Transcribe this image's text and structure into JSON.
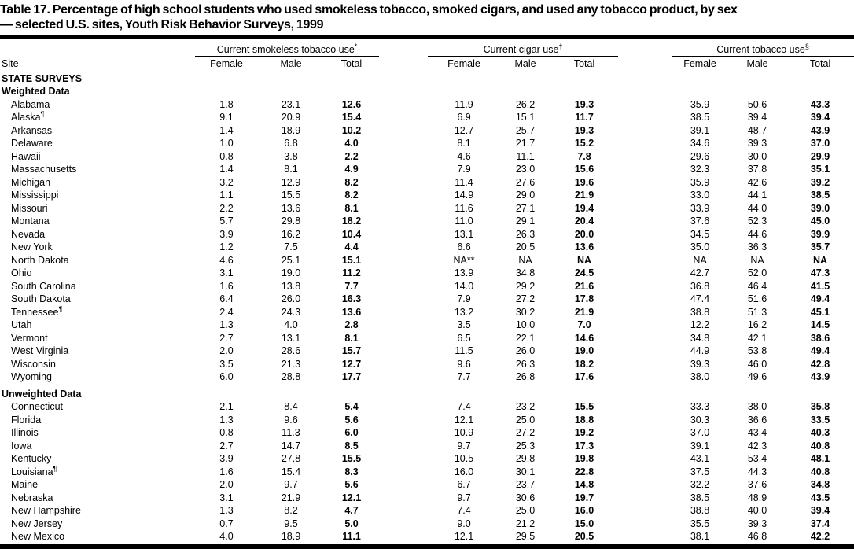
{
  "title": {
    "line1": "Table 17. Percentage of high school students who used smokeless tobacco, smoked cigars, and used any tobacco product, by sex",
    "line2": "— selected U.S. sites, Youth Risk Behavior Surveys, 1999"
  },
  "columns": {
    "site": "Site",
    "groups": [
      {
        "label": "Current smokeless tobacco use",
        "marker": "*",
        "sub": [
          "Female",
          "Male",
          "Total"
        ]
      },
      {
        "label": "Current cigar use",
        "marker": "†",
        "sub": [
          "Female",
          "Male",
          "Total"
        ]
      },
      {
        "label": "Current tobacco use",
        "marker": "§",
        "sub": [
          "Female",
          "Male",
          "Total"
        ]
      }
    ]
  },
  "rows": [
    {
      "type": "section",
      "label": "STATE SURVEYS"
    },
    {
      "type": "section",
      "label": "Weighted Data"
    },
    {
      "type": "data",
      "site": "Alabama",
      "values": [
        "1.8",
        "23.1",
        "12.6",
        "11.9",
        "26.2",
        "19.3",
        "35.9",
        "50.6",
        "43.3"
      ]
    },
    {
      "type": "data",
      "site": "Alaska",
      "sup": "¶",
      "values": [
        "9.1",
        "20.9",
        "15.4",
        "6.9",
        "15.1",
        "11.7",
        "38.5",
        "39.4",
        "39.4"
      ]
    },
    {
      "type": "data",
      "site": "Arkansas",
      "values": [
        "1.4",
        "18.9",
        "10.2",
        "12.7",
        "25.7",
        "19.3",
        "39.1",
        "48.7",
        "43.9"
      ]
    },
    {
      "type": "data",
      "site": "Delaware",
      "values": [
        "1.0",
        "6.8",
        "4.0",
        "8.1",
        "21.7",
        "15.2",
        "34.6",
        "39.3",
        "37.0"
      ]
    },
    {
      "type": "data",
      "site": "Hawaii",
      "values": [
        "0.8",
        "3.8",
        "2.2",
        "4.6",
        "11.1",
        "7.8",
        "29.6",
        "30.0",
        "29.9"
      ]
    },
    {
      "type": "data",
      "site": "Massachusetts",
      "values": [
        "1.4",
        "8.1",
        "4.9",
        "7.9",
        "23.0",
        "15.6",
        "32.3",
        "37.8",
        "35.1"
      ]
    },
    {
      "type": "data",
      "site": "Michigan",
      "values": [
        "3.2",
        "12.9",
        "8.2",
        "11.4",
        "27.6",
        "19.6",
        "35.9",
        "42.6",
        "39.2"
      ]
    },
    {
      "type": "data",
      "site": "Mississippi",
      "values": [
        "1.1",
        "15.5",
        "8.2",
        "14.9",
        "29.0",
        "21.9",
        "33.0",
        "44.1",
        "38.5"
      ]
    },
    {
      "type": "data",
      "site": "Missouri",
      "values": [
        "2.2",
        "13.6",
        "8.1",
        "11.6",
        "27.1",
        "19.4",
        "33.9",
        "44.0",
        "39.0"
      ]
    },
    {
      "type": "data",
      "site": "Montana",
      "values": [
        "5.7",
        "29.8",
        "18.2",
        "11.0",
        "29.1",
        "20.4",
        "37.6",
        "52.3",
        "45.0"
      ]
    },
    {
      "type": "data",
      "site": "Nevada",
      "values": [
        "3.9",
        "16.2",
        "10.4",
        "13.1",
        "26.3",
        "20.0",
        "34.5",
        "44.6",
        "39.9"
      ]
    },
    {
      "type": "data",
      "site": "New York",
      "values": [
        "1.2",
        "7.5",
        "4.4",
        "6.6",
        "20.5",
        "13.6",
        "35.0",
        "36.3",
        "35.7"
      ]
    },
    {
      "type": "data",
      "site": "North Dakota",
      "values": [
        "4.6",
        "25.1",
        "15.1",
        "NA**",
        "NA",
        "NA",
        "NA",
        "NA",
        "NA"
      ]
    },
    {
      "type": "data",
      "site": "Ohio",
      "values": [
        "3.1",
        "19.0",
        "11.2",
        "13.9",
        "34.8",
        "24.5",
        "42.7",
        "52.0",
        "47.3"
      ]
    },
    {
      "type": "data",
      "site": "South Carolina",
      "values": [
        "1.6",
        "13.8",
        "7.7",
        "14.0",
        "29.2",
        "21.6",
        "36.8",
        "46.4",
        "41.5"
      ]
    },
    {
      "type": "data",
      "site": "South Dakota",
      "values": [
        "6.4",
        "26.0",
        "16.3",
        "7.9",
        "27.2",
        "17.8",
        "47.4",
        "51.6",
        "49.4"
      ]
    },
    {
      "type": "data",
      "site": "Tennessee",
      "sup": "¶",
      "values": [
        "2.4",
        "24.3",
        "13.6",
        "13.2",
        "30.2",
        "21.9",
        "38.8",
        "51.3",
        "45.1"
      ]
    },
    {
      "type": "data",
      "site": "Utah",
      "values": [
        "1.3",
        "4.0",
        "2.8",
        "3.5",
        "10.0",
        "7.0",
        "12.2",
        "16.2",
        "14.5"
      ]
    },
    {
      "type": "data",
      "site": "Vermont",
      "values": [
        "2.7",
        "13.1",
        "8.1",
        "6.5",
        "22.1",
        "14.6",
        "34.8",
        "42.1",
        "38.6"
      ]
    },
    {
      "type": "data",
      "site": "West Virginia",
      "values": [
        "2.0",
        "28.6",
        "15.7",
        "11.5",
        "26.0",
        "19.0",
        "44.9",
        "53.8",
        "49.4"
      ]
    },
    {
      "type": "data",
      "site": "Wisconsin",
      "values": [
        "3.5",
        "21.3",
        "12.7",
        "9.6",
        "26.3",
        "18.2",
        "39.3",
        "46.0",
        "42.8"
      ]
    },
    {
      "type": "data",
      "site": "Wyoming",
      "values": [
        "6.0",
        "28.8",
        "17.7",
        "7.7",
        "26.8",
        "17.6",
        "38.0",
        "49.6",
        "43.9"
      ]
    },
    {
      "type": "section",
      "label": "Unweighted Data",
      "gap": true
    },
    {
      "type": "data",
      "site": "Connecticut",
      "values": [
        "2.1",
        "8.4",
        "5.4",
        "7.4",
        "23.2",
        "15.5",
        "33.3",
        "38.0",
        "35.8"
      ]
    },
    {
      "type": "data",
      "site": "Florida",
      "values": [
        "1.3",
        "9.6",
        "5.6",
        "12.1",
        "25.0",
        "18.8",
        "30.3",
        "36.6",
        "33.5"
      ]
    },
    {
      "type": "data",
      "site": "Illinois",
      "values": [
        "0.8",
        "11.3",
        "6.0",
        "10.9",
        "27.2",
        "19.2",
        "37.0",
        "43.4",
        "40.3"
      ]
    },
    {
      "type": "data",
      "site": "Iowa",
      "values": [
        "2.7",
        "14.7",
        "8.5",
        "9.7",
        "25.3",
        "17.3",
        "39.1",
        "42.3",
        "40.8"
      ]
    },
    {
      "type": "data",
      "site": "Kentucky",
      "values": [
        "3.9",
        "27.8",
        "15.5",
        "10.5",
        "29.8",
        "19.8",
        "43.1",
        "53.4",
        "48.1"
      ]
    },
    {
      "type": "data",
      "site": "Louisiana",
      "sup": "¶",
      "values": [
        "1.6",
        "15.4",
        "8.3",
        "16.0",
        "30.1",
        "22.8",
        "37.5",
        "44.3",
        "40.8"
      ]
    },
    {
      "type": "data",
      "site": "Maine",
      "values": [
        "2.0",
        "9.7",
        "5.6",
        "6.7",
        "23.7",
        "14.8",
        "32.2",
        "37.6",
        "34.8"
      ]
    },
    {
      "type": "data",
      "site": "Nebraska",
      "values": [
        "3.1",
        "21.9",
        "12.1",
        "9.7",
        "30.6",
        "19.7",
        "38.5",
        "48.9",
        "43.5"
      ]
    },
    {
      "type": "data",
      "site": "New Hampshire",
      "values": [
        "1.3",
        "8.2",
        "4.7",
        "7.4",
        "25.0",
        "16.0",
        "38.8",
        "40.0",
        "39.4"
      ]
    },
    {
      "type": "data",
      "site": "New Jersey",
      "values": [
        "0.7",
        "9.5",
        "5.0",
        "9.0",
        "21.2",
        "15.0",
        "35.5",
        "39.3",
        "37.4"
      ]
    },
    {
      "type": "data",
      "site": "New Mexico",
      "values": [
        "4.0",
        "18.9",
        "11.1",
        "12.1",
        "29.5",
        "20.5",
        "38.1",
        "46.8",
        "42.2"
      ]
    }
  ]
}
